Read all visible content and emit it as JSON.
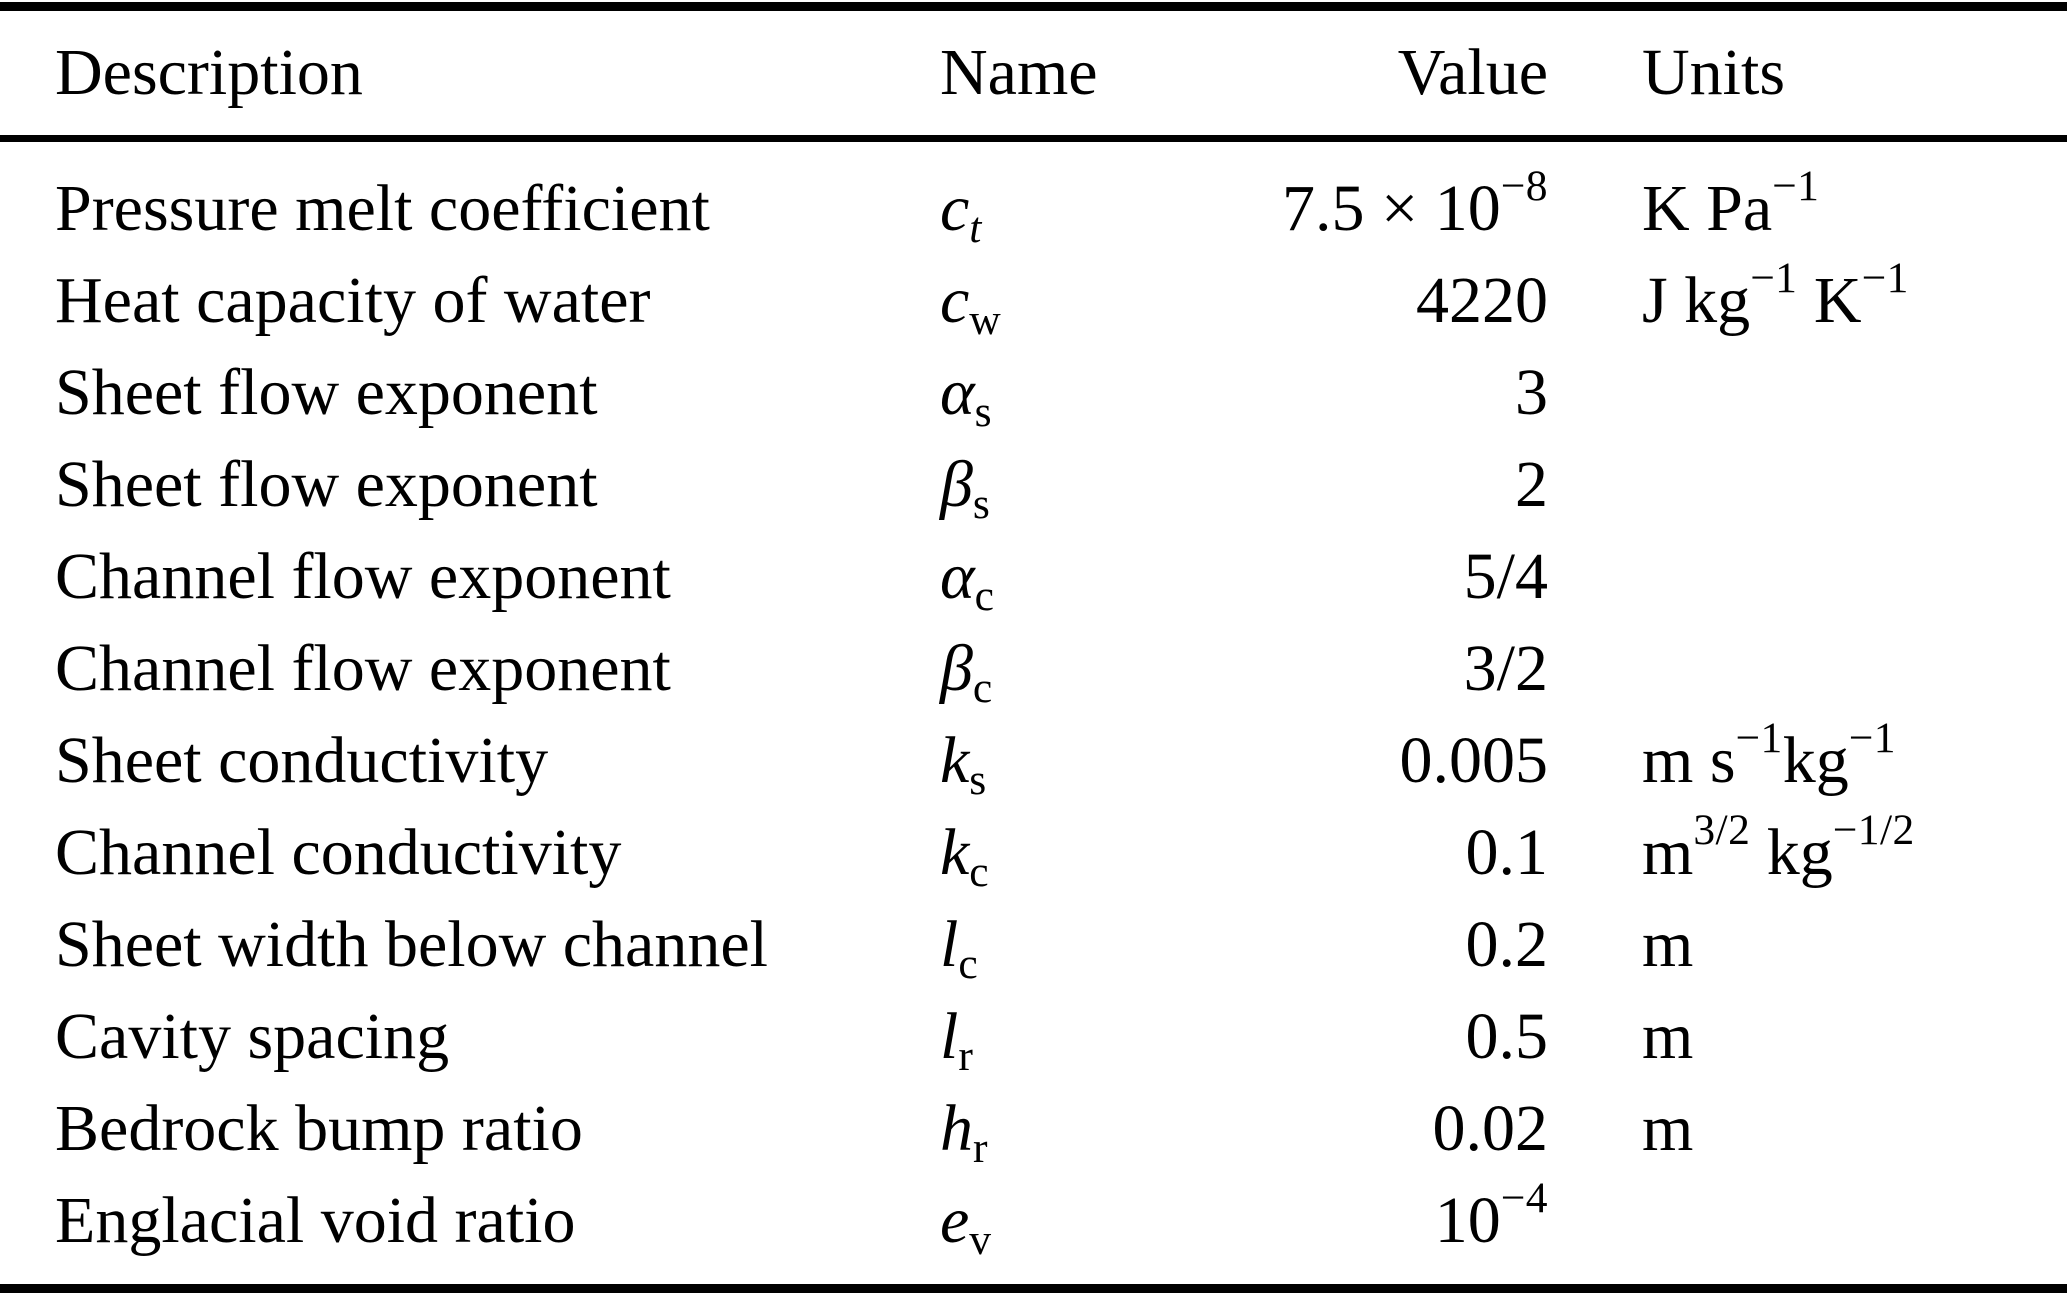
{
  "colors": {
    "text": "#000000",
    "background": "#ffffff",
    "rule": "#000000"
  },
  "table": {
    "columns": [
      {
        "label": "Description",
        "align": "left"
      },
      {
        "label": "Name",
        "align": "left"
      },
      {
        "label": "Value",
        "align": "right"
      },
      {
        "label": "Units",
        "align": "left"
      }
    ],
    "rows": [
      {
        "description": "Pressure melt coefficient",
        "name": [
          {
            "t": "c",
            "i": true
          },
          {
            "t": "t",
            "pos": "sub",
            "i": true
          }
        ],
        "value": [
          {
            "t": "7.5 × 10"
          },
          {
            "t": "−8",
            "pos": "sup"
          }
        ],
        "units": [
          {
            "t": "K Pa"
          },
          {
            "t": "−1",
            "pos": "sup"
          }
        ]
      },
      {
        "description": "Heat capacity of water",
        "name": [
          {
            "t": "c",
            "i": true
          },
          {
            "t": "w",
            "pos": "sub"
          }
        ],
        "value": [
          {
            "t": "4220"
          }
        ],
        "units": [
          {
            "t": "J kg"
          },
          {
            "t": "−1",
            "pos": "sup"
          },
          {
            "t": " K"
          },
          {
            "t": "−1",
            "pos": "sup"
          }
        ]
      },
      {
        "description": "Sheet flow exponent",
        "name": [
          {
            "t": "α",
            "i": true
          },
          {
            "t": "s",
            "pos": "sub"
          }
        ],
        "value": [
          {
            "t": "3"
          }
        ],
        "units": []
      },
      {
        "description": "Sheet flow exponent",
        "name": [
          {
            "t": "β",
            "i": true
          },
          {
            "t": "s",
            "pos": "sub"
          }
        ],
        "value": [
          {
            "t": "2"
          }
        ],
        "units": []
      },
      {
        "description": "Channel flow exponent",
        "name": [
          {
            "t": "α",
            "i": true
          },
          {
            "t": "c",
            "pos": "sub"
          }
        ],
        "value": [
          {
            "t": "5/4"
          }
        ],
        "units": []
      },
      {
        "description": "Channel flow exponent",
        "name": [
          {
            "t": "β",
            "i": true
          },
          {
            "t": "c",
            "pos": "sub"
          }
        ],
        "value": [
          {
            "t": "3/2"
          }
        ],
        "units": []
      },
      {
        "description": "Sheet conductivity",
        "name": [
          {
            "t": "k",
            "i": true
          },
          {
            "t": "s",
            "pos": "sub"
          }
        ],
        "value": [
          {
            "t": "0.005"
          }
        ],
        "units": [
          {
            "t": "m s"
          },
          {
            "t": "−1",
            "pos": "sup"
          },
          {
            "t": "kg"
          },
          {
            "t": "−1",
            "pos": "sup"
          }
        ]
      },
      {
        "description": "Channel conductivity",
        "name": [
          {
            "t": "k",
            "i": true
          },
          {
            "t": "c",
            "pos": "sub"
          }
        ],
        "value": [
          {
            "t": "0.1"
          }
        ],
        "units": [
          {
            "t": "m"
          },
          {
            "t": "3/2",
            "pos": "sup"
          },
          {
            "t": " kg"
          },
          {
            "t": "−1/2",
            "pos": "sup"
          }
        ]
      },
      {
        "description": "Sheet width below channel",
        "name": [
          {
            "t": "l",
            "i": true
          },
          {
            "t": "c",
            "pos": "sub"
          }
        ],
        "value": [
          {
            "t": "0.2"
          }
        ],
        "units": [
          {
            "t": "m"
          }
        ]
      },
      {
        "description": "Cavity spacing",
        "name": [
          {
            "t": "l",
            "i": true
          },
          {
            "t": "r",
            "pos": "sub"
          }
        ],
        "value": [
          {
            "t": "0.5"
          }
        ],
        "units": [
          {
            "t": "m"
          }
        ]
      },
      {
        "description": "Bedrock bump ratio",
        "name": [
          {
            "t": "h",
            "i": true
          },
          {
            "t": "r",
            "pos": "sub"
          }
        ],
        "value": [
          {
            "t": "0.02"
          }
        ],
        "units": [
          {
            "t": "m"
          }
        ]
      },
      {
        "description": "Englacial void ratio",
        "name": [
          {
            "t": "e",
            "i": true
          },
          {
            "t": "v",
            "pos": "sub"
          }
        ],
        "value": [
          {
            "t": "10"
          },
          {
            "t": "−4",
            "pos": "sup"
          }
        ],
        "units": []
      }
    ]
  }
}
